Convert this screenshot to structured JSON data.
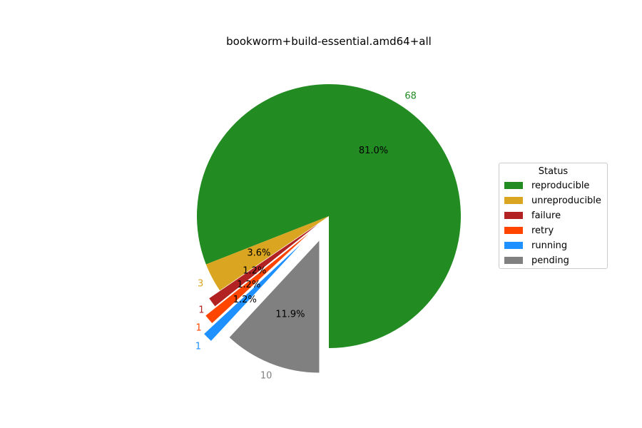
{
  "chart_data": {
    "type": "pie",
    "title": "bookworm+build-essential.amd64+all",
    "legend_title": "Status",
    "legend_position": "right",
    "start_angle_deg": 270,
    "direction": "counterclockwise",
    "slices": [
      {
        "label": "reproducible",
        "value": 68,
        "percent_label": "81.0%",
        "color": "#228B22",
        "exploded": false
      },
      {
        "label": "unreproducible",
        "value": 3,
        "percent_label": "3.6%",
        "color": "#DAA520",
        "exploded": false
      },
      {
        "label": "failure",
        "value": 1,
        "percent_label": "1.2%",
        "color": "#B22222",
        "exploded": true
      },
      {
        "label": "retry",
        "value": 1,
        "percent_label": "1.2%",
        "color": "#FF4500",
        "exploded": true
      },
      {
        "label": "running",
        "value": 1,
        "percent_label": "1.2%",
        "color": "#1E90FF",
        "exploded": true
      },
      {
        "label": "pending",
        "value": 10,
        "percent_label": "11.9%",
        "color": "#808080",
        "exploded": true
      }
    ]
  }
}
